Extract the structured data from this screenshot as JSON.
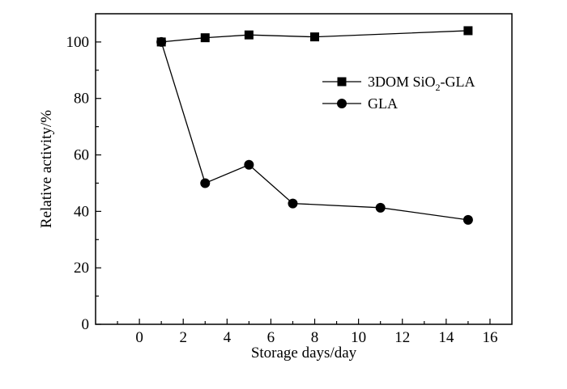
{
  "chart_data": {
    "type": "line",
    "title": "",
    "xlabel": "Storage days/day",
    "ylabel": "Relative activity/%",
    "xlim": [
      -2,
      17
    ],
    "ylim": [
      0,
      110
    ],
    "x_ticks": [
      0,
      2,
      4,
      6,
      8,
      10,
      12,
      14,
      16
    ],
    "y_ticks": [
      0,
      20,
      40,
      60,
      80,
      100
    ],
    "x_tick_labels": [
      "0",
      "2",
      "4",
      "6",
      "8",
      "10",
      "12",
      "14",
      "16"
    ],
    "y_tick_labels": [
      "0",
      "20",
      "40",
      "60",
      "80",
      "100"
    ],
    "grid": false,
    "legend_position": "top-right",
    "series": [
      {
        "name": "3DOM SiO2-GLA",
        "legend": {
          "pre": "3DOM SiO",
          "sub": "2",
          "post": "-GLA"
        },
        "marker": "square",
        "color": "#000000",
        "points": [
          {
            "x": 1,
            "y": 100
          },
          {
            "x": 3,
            "y": 101.5
          },
          {
            "x": 5,
            "y": 102.5
          },
          {
            "x": 8,
            "y": 101.8
          },
          {
            "x": 15,
            "y": 104
          }
        ]
      },
      {
        "name": "GLA",
        "legend": {
          "pre": "GLA",
          "sub": "",
          "post": ""
        },
        "marker": "circle",
        "color": "#000000",
        "points": [
          {
            "x": 1,
            "y": 100
          },
          {
            "x": 3,
            "y": 50
          },
          {
            "x": 5,
            "y": 56.5
          },
          {
            "x": 7,
            "y": 42.8
          },
          {
            "x": 11,
            "y": 41.3
          },
          {
            "x": 15,
            "y": 37
          }
        ]
      }
    ]
  }
}
